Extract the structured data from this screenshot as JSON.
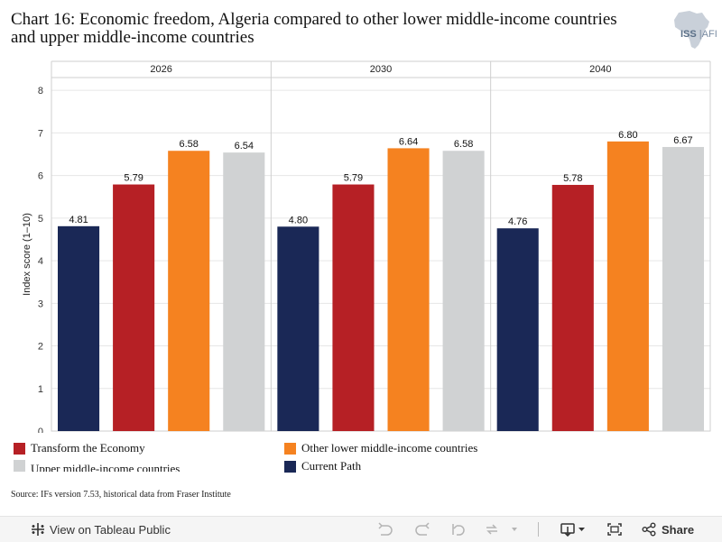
{
  "title": "Chart 16: Economic freedom, Algeria compared to other lower middle-income countries and upper middle-income countries",
  "logo": {
    "text_iss": "ISS",
    "text_afi": "AFI"
  },
  "source": "Source: IFs version 7.53, historical data from Fraser Institute",
  "legend": [
    {
      "label": "Transform the Economy",
      "color": "#b62025"
    },
    {
      "label": "Other lower middle-income countries",
      "color": "#f58220"
    },
    {
      "label": "Upper middle-income countries",
      "color": "#d0d2d3"
    },
    {
      "label": "Current Path",
      "color": "#1a2856"
    }
  ],
  "toolbar": {
    "view_label": "View on Tableau Public",
    "share_label": "Share"
  },
  "chart_data": {
    "type": "bar",
    "ylabel": "Index score (1–10)",
    "ylim": [
      0,
      8.3
    ],
    "yticks": [
      0,
      1,
      2,
      3,
      4,
      5,
      6,
      7,
      8
    ],
    "grid": true,
    "panels": [
      "2026",
      "2030",
      "2040"
    ],
    "series": [
      {
        "name": "Current Path",
        "color": "#1a2856",
        "values": [
          4.81,
          4.8,
          4.76
        ],
        "labels": [
          "4.81",
          "4.80",
          "4.76"
        ]
      },
      {
        "name": "Transform the Economy",
        "color": "#b62025",
        "values": [
          5.79,
          5.79,
          5.78
        ],
        "labels": [
          "5.79",
          "5.79",
          "5.78"
        ]
      },
      {
        "name": "Other lower middle-income countries",
        "color": "#f58220",
        "values": [
          6.58,
          6.64,
          6.8
        ],
        "labels": [
          "6.58",
          "6.64",
          "6.80"
        ]
      },
      {
        "name": "Upper middle-income countries",
        "color": "#d0d2d3",
        "values": [
          6.54,
          6.58,
          6.67
        ],
        "labels": [
          "6.54",
          "6.58",
          "6.67"
        ]
      }
    ]
  }
}
